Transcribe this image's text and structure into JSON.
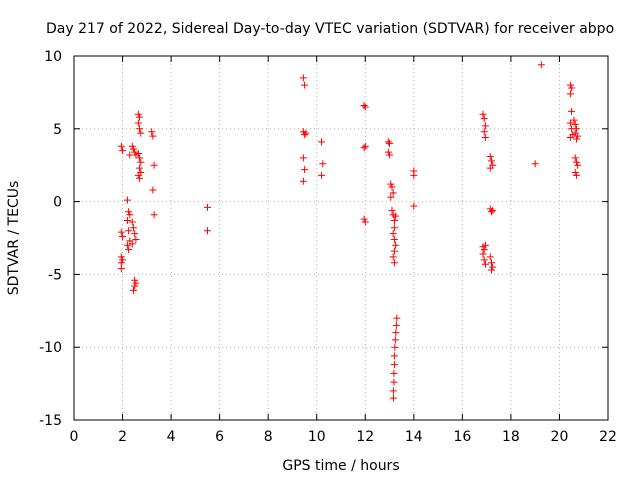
{
  "chart_data": {
    "type": "scatter",
    "title": "Day 217 of 2022, Sidereal Day-to-day VTEC variation (SDTVAR) for receiver abpo",
    "xlabel": "GPS time / hours",
    "ylabel": "SDTVAR / TECUs",
    "xlim": [
      0,
      22
    ],
    "ylim": [
      -15,
      10
    ],
    "xticks": [
      0,
      2,
      4,
      6,
      8,
      10,
      12,
      14,
      16,
      18,
      20,
      22
    ],
    "yticks": [
      -15,
      -10,
      -5,
      0,
      5,
      10
    ],
    "grid": true,
    "marker": "+",
    "marker_color": "#ff0000",
    "series": [
      {
        "name": "SDTVAR",
        "points": [
          [
            1.95,
            3.8
          ],
          [
            2.0,
            3.5
          ],
          [
            1.95,
            -2.1
          ],
          [
            2.0,
            -2.4
          ],
          [
            1.95,
            -3.8
          ],
          [
            1.95,
            -4.2
          ],
          [
            1.95,
            -4.6
          ],
          [
            2.0,
            -4.0
          ],
          [
            2.2,
            0.1
          ],
          [
            2.25,
            -0.7
          ],
          [
            2.3,
            -0.9
          ],
          [
            2.2,
            -1.3
          ],
          [
            2.25,
            -2.0
          ],
          [
            2.3,
            -2.7
          ],
          [
            2.2,
            -3.0
          ],
          [
            2.25,
            -3.3
          ],
          [
            2.3,
            3.2
          ],
          [
            2.4,
            3.8
          ],
          [
            2.45,
            3.6
          ],
          [
            2.5,
            3.4
          ],
          [
            2.55,
            3.2
          ],
          [
            2.4,
            -1.4
          ],
          [
            2.45,
            -1.8
          ],
          [
            2.5,
            -2.2
          ],
          [
            2.55,
            -2.6
          ],
          [
            2.4,
            -2.9
          ],
          [
            2.5,
            -5.4
          ],
          [
            2.5,
            -5.8
          ],
          [
            2.45,
            -6.1
          ],
          [
            2.55,
            -5.6
          ],
          [
            2.65,
            6.0
          ],
          [
            2.7,
            5.8
          ],
          [
            2.65,
            5.4
          ],
          [
            2.7,
            5.0
          ],
          [
            2.75,
            4.7
          ],
          [
            2.65,
            3.3
          ],
          [
            2.7,
            3.0
          ],
          [
            2.75,
            2.7
          ],
          [
            2.7,
            2.3
          ],
          [
            2.65,
            1.8
          ],
          [
            2.7,
            1.6
          ],
          [
            2.75,
            2.0
          ],
          [
            3.2,
            4.8
          ],
          [
            3.25,
            4.5
          ],
          [
            3.3,
            2.5
          ],
          [
            3.25,
            0.8
          ],
          [
            3.3,
            -0.9
          ],
          [
            5.5,
            -0.4
          ],
          [
            5.5,
            -2.0
          ],
          [
            9.45,
            8.5
          ],
          [
            9.5,
            8.0
          ],
          [
            9.45,
            4.8
          ],
          [
            9.5,
            4.6
          ],
          [
            9.55,
            4.7
          ],
          [
            9.45,
            3.0
          ],
          [
            9.5,
            2.2
          ],
          [
            9.45,
            1.4
          ],
          [
            10.2,
            4.1
          ],
          [
            10.25,
            2.6
          ],
          [
            10.2,
            1.8
          ],
          [
            11.95,
            6.6
          ],
          [
            12.0,
            6.5
          ],
          [
            11.95,
            3.7
          ],
          [
            12.0,
            3.8
          ],
          [
            11.95,
            -1.2
          ],
          [
            12.0,
            -1.4
          ],
          [
            12.95,
            4.1
          ],
          [
            13.0,
            4.0
          ],
          [
            12.95,
            3.4
          ],
          [
            13.0,
            3.2
          ],
          [
            13.05,
            1.2
          ],
          [
            13.1,
            1.0
          ],
          [
            13.15,
            0.6
          ],
          [
            13.05,
            0.3
          ],
          [
            13.1,
            -0.6
          ],
          [
            13.15,
            -0.9
          ],
          [
            13.2,
            -1.3
          ],
          [
            13.25,
            -1.0
          ],
          [
            13.2,
            -1.8
          ],
          [
            13.15,
            -2.2
          ],
          [
            13.2,
            -2.6
          ],
          [
            13.25,
            -3.0
          ],
          [
            13.2,
            -3.4
          ],
          [
            13.15,
            -3.8
          ],
          [
            13.2,
            -4.2
          ],
          [
            13.3,
            -8.0
          ],
          [
            13.28,
            -8.5
          ],
          [
            13.26,
            -9.0
          ],
          [
            13.24,
            -9.5
          ],
          [
            13.22,
            -10.0
          ],
          [
            13.2,
            -10.6
          ],
          [
            13.2,
            -11.2
          ],
          [
            13.18,
            -11.8
          ],
          [
            13.18,
            -12.4
          ],
          [
            13.16,
            -13.0
          ],
          [
            13.16,
            -13.5
          ],
          [
            14.0,
            2.1
          ],
          [
            14.0,
            1.8
          ],
          [
            14.0,
            -0.3
          ],
          [
            16.85,
            6.0
          ],
          [
            16.9,
            5.7
          ],
          [
            16.95,
            5.2
          ],
          [
            16.9,
            4.8
          ],
          [
            16.95,
            4.4
          ],
          [
            16.85,
            -3.1
          ],
          [
            16.9,
            -3.3
          ],
          [
            16.95,
            -3.0
          ],
          [
            16.85,
            -3.6
          ],
          [
            16.9,
            -4.0
          ],
          [
            16.95,
            -4.3
          ],
          [
            17.15,
            3.1
          ],
          [
            17.2,
            2.8
          ],
          [
            17.25,
            2.5
          ],
          [
            17.15,
            2.3
          ],
          [
            17.15,
            -0.5
          ],
          [
            17.2,
            -0.7
          ],
          [
            17.25,
            -0.6
          ],
          [
            17.15,
            -3.8
          ],
          [
            17.2,
            -4.2
          ],
          [
            17.25,
            -4.5
          ],
          [
            17.2,
            -4.7
          ],
          [
            19.0,
            2.6
          ],
          [
            19.25,
            9.4
          ],
          [
            20.45,
            8.0
          ],
          [
            20.5,
            7.8
          ],
          [
            20.45,
            7.4
          ],
          [
            20.5,
            6.2
          ],
          [
            20.45,
            5.4
          ],
          [
            20.5,
            5.0
          ],
          [
            20.55,
            4.6
          ],
          [
            20.45,
            4.4
          ],
          [
            20.6,
            5.6
          ],
          [
            20.65,
            5.3
          ],
          [
            20.7,
            5.0
          ],
          [
            20.65,
            4.7
          ],
          [
            20.7,
            4.3
          ],
          [
            20.75,
            4.5
          ],
          [
            20.65,
            3.0
          ],
          [
            20.7,
            2.7
          ],
          [
            20.75,
            2.5
          ],
          [
            20.65,
            2.0
          ],
          [
            20.7,
            1.8
          ]
        ]
      }
    ]
  }
}
